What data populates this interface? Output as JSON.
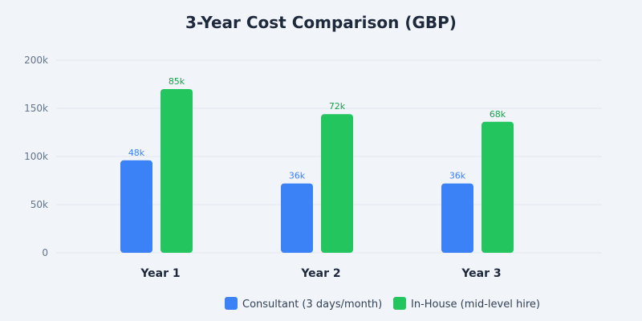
{
  "chart_data": {
    "type": "bar",
    "title": "3-Year Cost Comparison (GBP)",
    "categories": [
      "Year 1",
      "Year 2",
      "Year 3"
    ],
    "series": [
      {
        "name": "Consultant (3 days/month)",
        "color": "#3b82f6",
        "label_color": "#3b82f6",
        "values": [
          48,
          36,
          36
        ],
        "labels": [
          "48k",
          "36k",
          "36k"
        ]
      },
      {
        "name": "In-House (mid-level hire)",
        "color": "#22c55e",
        "label_color": "#16a34a",
        "values": [
          85,
          72,
          68
        ],
        "labels": [
          "85k",
          "72k",
          "68k"
        ]
      }
    ],
    "ylim": [
      0,
      200
    ],
    "yticks": [
      0,
      50,
      100,
      150,
      200
    ],
    "ytick_labels": [
      "0",
      "50k",
      "100k",
      "150k",
      "200k"
    ],
    "unit": "k GBP",
    "grid": true,
    "legend": "bottom"
  }
}
